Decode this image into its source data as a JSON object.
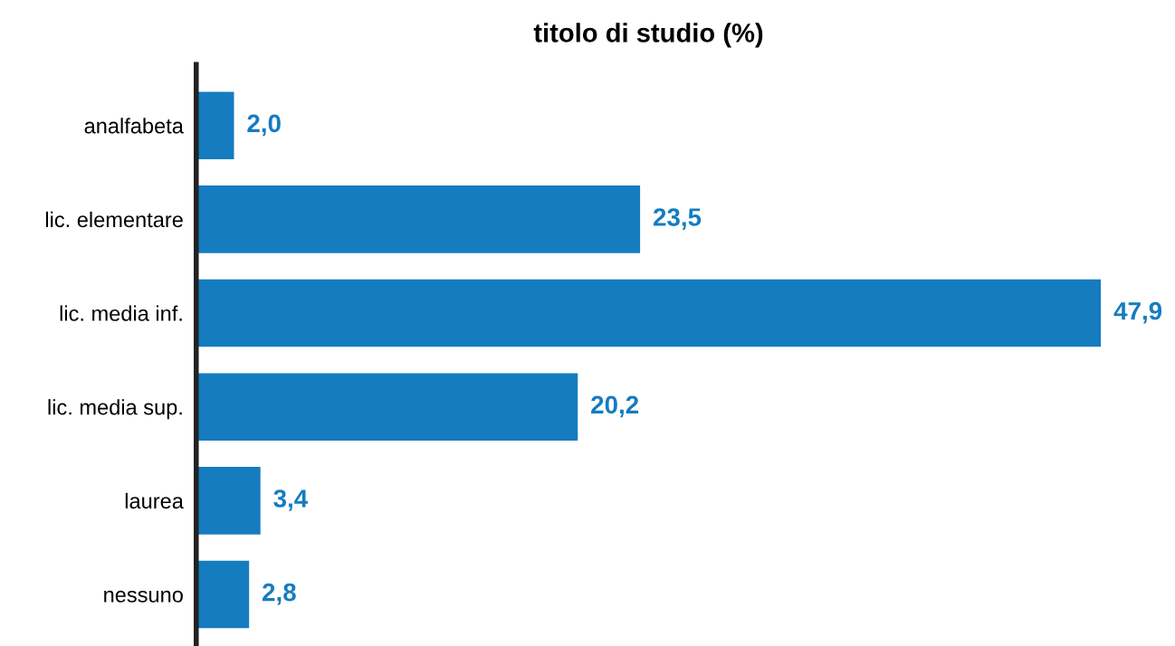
{
  "chart_data": {
    "type": "bar",
    "orientation": "horizontal",
    "title": "titolo di studio (%)",
    "categories": [
      "analfabeta",
      "lic. elementare",
      "lic. media inf.",
      "lic. media sup.",
      "laurea",
      "nessuno"
    ],
    "values": [
      2.0,
      23.5,
      47.9,
      20.2,
      3.4,
      2.8
    ],
    "value_labels": [
      "2,0",
      "23,5",
      "47,9",
      "20,2",
      "3,4",
      "2,8"
    ],
    "color": "#157cc0",
    "grid": false,
    "legend": false
  }
}
